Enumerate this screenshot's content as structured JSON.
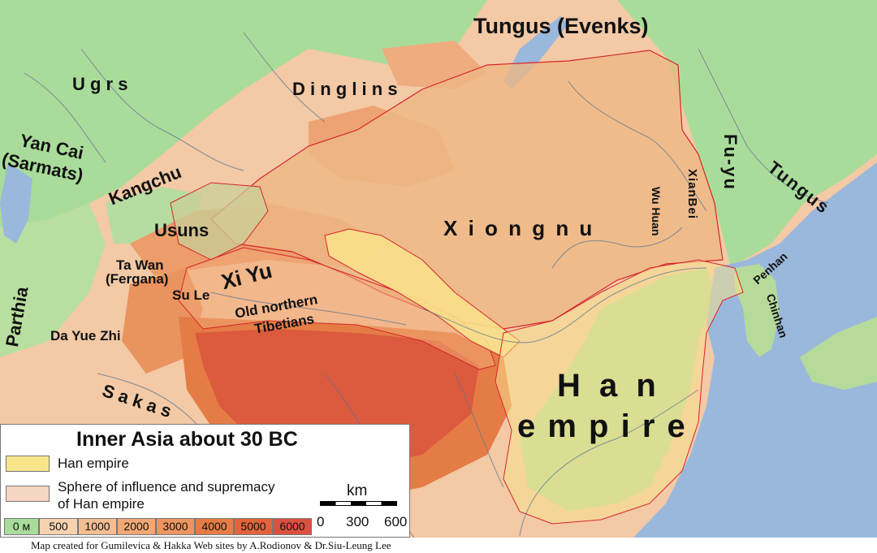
{
  "map": {
    "colors": {
      "sea": "#9ab8dc",
      "lowland": "#a9dc9a",
      "plain": "#f3c9a6",
      "mountain": "#e9935f",
      "high": "#d9573c",
      "xiongnu_sphere": "#eeb884",
      "han": "#f8df8e",
      "border": "#d5262b",
      "river": "#5b7692"
    },
    "labels": {
      "tungus_evenks": "Tungus (Evenks)",
      "ugrs": "U g r s",
      "dinglins": "D i n g l i n s",
      "yan_cai": "Yan Cai",
      "sarmats": "(Sarmats)",
      "kangchu": "Kangchu",
      "usuns": "Usuns",
      "ta_wan": "Ta Wan",
      "fergana": "(Fergana)",
      "su_le": "Su Le",
      "xi_yu": "Xi Yu",
      "parthia": "Parthia",
      "da_yue_zhi": "Da Yue Zhi",
      "old_northern": "Old northern",
      "tibetians": "Tibetians",
      "sakas": "S a k a s",
      "xiongnu": "X i o n g n u",
      "wu_huan": "Wu Huan",
      "xian_bei": "XianBei",
      "fu_yu": "Fu-yu",
      "tungus": "Tungus",
      "penhan": "Penhan",
      "chinhan": "Chinhan",
      "han": "H a n",
      "empire": "e m p i r e"
    }
  },
  "legend": {
    "title": "Inner Asia about 30 BC",
    "items": [
      {
        "label": "Han empire",
        "color": "#f8e58c"
      },
      {
        "label_line1": "Sphere of influence and supremacy",
        "label_line2": "of Han empire",
        "color": "#f5d6c2"
      }
    ],
    "elevation": [
      {
        "label": "0 м",
        "color": "#a9dc9a"
      },
      {
        "label": "500",
        "color": "#f6d2b0"
      },
      {
        "label": "1000",
        "color": "#f3bd92"
      },
      {
        "label": "2000",
        "color": "#f0a774"
      },
      {
        "label": "3000",
        "color": "#ec9560"
      },
      {
        "label": "4000",
        "color": "#e57c45"
      },
      {
        "label": "5000",
        "color": "#e0633c"
      },
      {
        "label": "6000",
        "color": "#dc5040"
      }
    ],
    "scale": {
      "unit": "km",
      "ticks": [
        "0",
        "300",
        "600"
      ]
    }
  },
  "credit": "Map created for Gumilevica & Hakka Web sites by A.Rodionov & Dr.Siu-Leung Lee"
}
